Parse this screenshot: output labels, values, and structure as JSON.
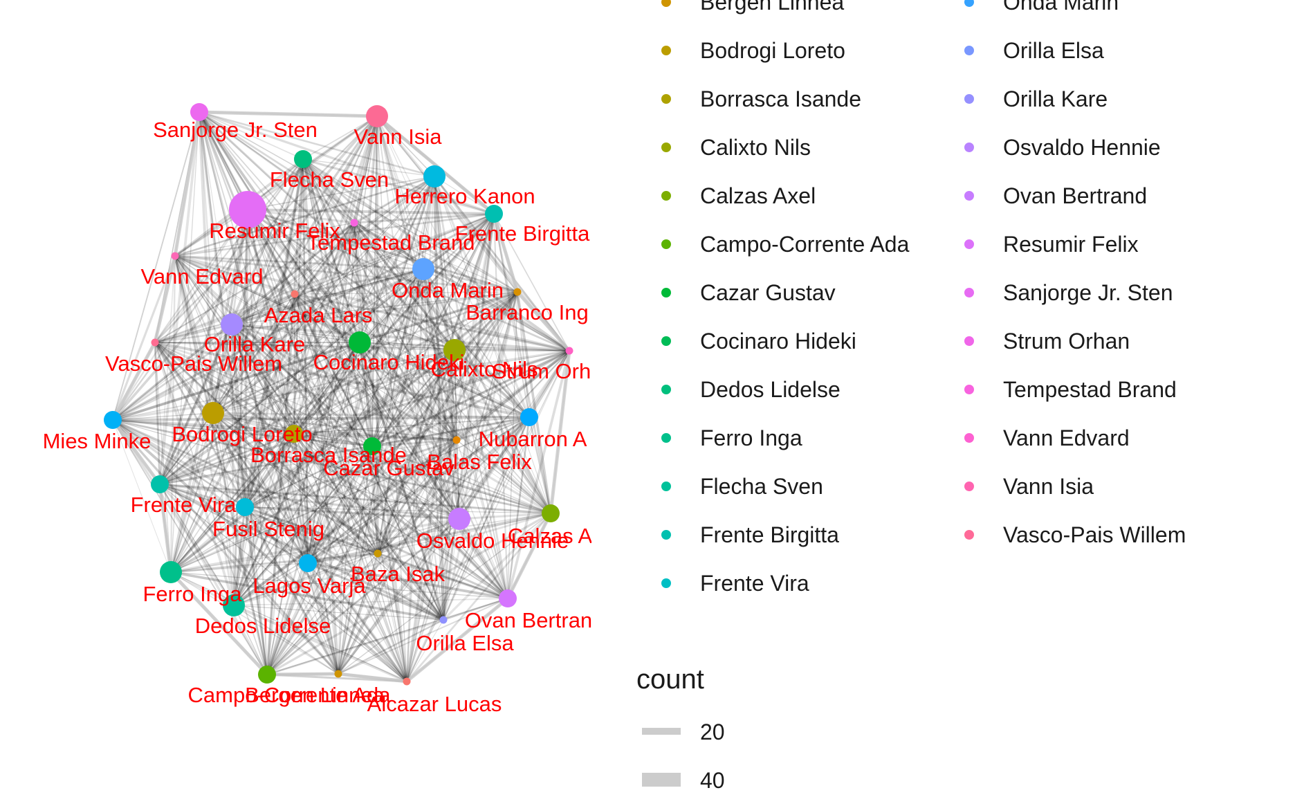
{
  "nodes": [
    {
      "label": "Sanjorge Jr. Sten",
      "color": "#EC69EF",
      "size": 1
    },
    {
      "label": "Vann Isia",
      "color": "#FC6A94",
      "size": 2
    },
    {
      "label": "Flecha Sven",
      "color": "#00BF7E",
      "size": 1
    },
    {
      "label": "Herrero Kanon",
      "color": "#00BAE0",
      "size": 2
    },
    {
      "label": "Resumir Felix",
      "color": "#E46DF6",
      "size": 5
    },
    {
      "label": "Tempestad Brand",
      "color": "#F863DF",
      "size": 0
    },
    {
      "label": "Frente Birgitta",
      "color": "#00BFB1",
      "size": 1
    },
    {
      "label": "Vann Edvard",
      "color": "#FC68B6",
      "size": 0
    },
    {
      "label": "Onda Marin",
      "color": "#5DA3FF",
      "size": 2
    },
    {
      "label": "Barranco Ing",
      "color": "#D89000",
      "size": 0
    },
    {
      "label": "Azada Lars",
      "color": "#F8766D",
      "size": 0
    },
    {
      "label": "Orilla Kare",
      "color": "#A58AFF",
      "size": 2
    },
    {
      "label": "Cocinaro Hideki",
      "color": "#00B837",
      "size": 2
    },
    {
      "label": "Calixto Nils",
      "color": "#99A800",
      "size": 2
    },
    {
      "label": "Vasco-Pais Willem",
      "color": "#FF6C91",
      "size": 0
    },
    {
      "label": "Strum Orhan",
      "color": "#FF61C3",
      "size": 0
    },
    {
      "label": "Mies Minke",
      "color": "#00B0F6",
      "size": 1
    },
    {
      "label": "Bodrogi Loreto",
      "color": "#BB9D00",
      "size": 2
    },
    {
      "label": "Borrasca Isande",
      "color": "#AEA200",
      "size": 1
    },
    {
      "label": "Cazar Gustav",
      "color": "#00BA38",
      "size": 1
    },
    {
      "label": "Nubarron A",
      "color": "#00A9FF",
      "size": 1
    },
    {
      "label": "Balas Felix",
      "color": "#E58700",
      "size": 0
    },
    {
      "label": "Frente Vira",
      "color": "#00C1AA",
      "size": 1
    },
    {
      "label": "Fusil Stenig",
      "color": "#00BCD8",
      "size": 1
    },
    {
      "label": "Calzas A",
      "color": "#7CAE00",
      "size": 1
    },
    {
      "label": "Osvaldo Hennie",
      "color": "#C77CFF",
      "size": 2
    },
    {
      "label": "Baza Isak",
      "color": "#C99800",
      "size": 0
    },
    {
      "label": "Lagos Varja",
      "color": "#00B4EF",
      "size": 1
    },
    {
      "label": "Ferro Inga",
      "color": "#00C08B",
      "size": 2
    },
    {
      "label": "Dedos Lidelse",
      "color": "#00C19A",
      "size": 2
    },
    {
      "label": "Ovan Bertran",
      "color": "#D575FE",
      "size": 1
    },
    {
      "label": "Orilla Elsa",
      "color": "#8F91FF",
      "size": 0
    },
    {
      "label": "Campo-Corrente Ada",
      "color": "#5BB300",
      "size": 1
    },
    {
      "label": "Bergen Linnea",
      "color": "#CF9400",
      "size": 0
    },
    {
      "label": "Alcazar Lucas",
      "color": "#F8766D",
      "size": 0
    }
  ],
  "legend_color": {
    "col1": [
      {
        "label": "Bergen Linnea",
        "color": "#CF9400"
      },
      {
        "label": "Bodrogi Loreto",
        "color": "#BB9D00"
      },
      {
        "label": "Borrasca Isande",
        "color": "#AEA200"
      },
      {
        "label": "Calixto Nils",
        "color": "#99A800"
      },
      {
        "label": "Calzas Axel",
        "color": "#7CAE00"
      },
      {
        "label": "Campo-Corrente Ada",
        "color": "#5BB300"
      },
      {
        "label": "Cazar Gustav",
        "color": "#00BA38"
      },
      {
        "label": "Cocinaro Hideki",
        "color": "#00BC56"
      },
      {
        "label": "Dedos Lidelse",
        "color": "#00BF7D"
      },
      {
        "label": "Ferro Inga",
        "color": "#00C08B"
      },
      {
        "label": "Flecha Sven",
        "color": "#00C19A"
      },
      {
        "label": "Frente Birgitta",
        "color": "#00C0AF"
      },
      {
        "label": "Frente Vira",
        "color": "#00BFC4"
      }
    ],
    "col2": [
      {
        "label": "Onda Marin",
        "color": "#35A2FF"
      },
      {
        "label": "Orilla Elsa",
        "color": "#7997FF"
      },
      {
        "label": "Orilla Kare",
        "color": "#9590FF"
      },
      {
        "label": "Osvaldo Hennie",
        "color": "#B983FF"
      },
      {
        "label": "Ovan Bertrand",
        "color": "#C77CFF"
      },
      {
        "label": "Resumir Felix",
        "color": "#DC71FA"
      },
      {
        "label": "Sanjorge Jr. Sten",
        "color": "#E76BF3"
      },
      {
        "label": "Strum Orhan",
        "color": "#F066E9"
      },
      {
        "label": "Tempestad Brand",
        "color": "#F863DF"
      },
      {
        "label": "Vann Edvard",
        "color": "#FD61D1"
      },
      {
        "label": "Vann Isia",
        "color": "#FF64B0"
      },
      {
        "label": "Vasco-Pais Willem",
        "color": "#FF6A98"
      }
    ]
  },
  "legend_count": {
    "title": "count",
    "keys": [
      {
        "label": "20",
        "value": 20
      },
      {
        "label": "40",
        "value": 40
      }
    ]
  },
  "colors": {
    "label_text": "#FF0000",
    "edge": "#000000",
    "hull_edge": "#C8C8C8"
  }
}
